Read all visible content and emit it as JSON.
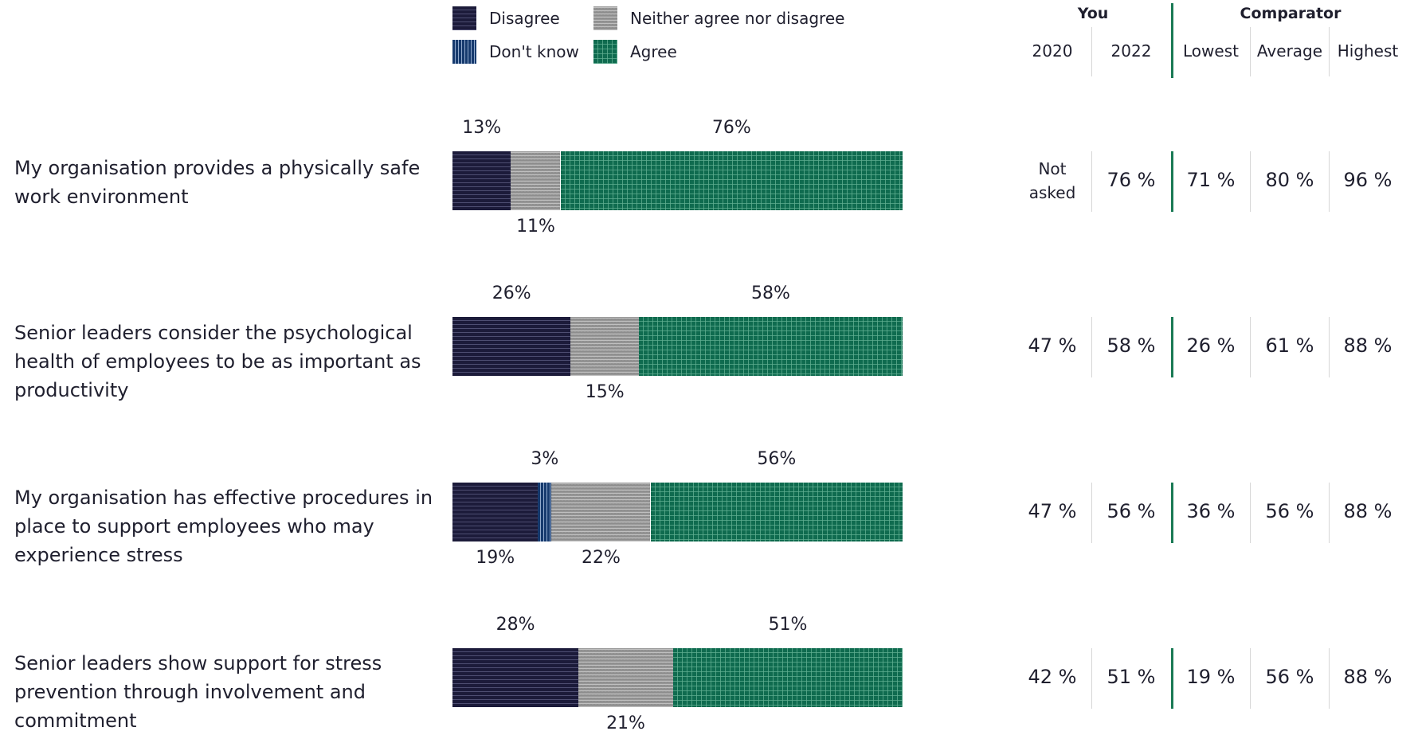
{
  "colors": {
    "disagree": "#1c1b3a",
    "dont_know": "#163a6e",
    "neither": "#8d8d8d",
    "agree": "#0f6b4f",
    "divider_accent": "#1a7a55"
  },
  "legend": [
    {
      "key": "disagree",
      "label": "Disagree"
    },
    {
      "key": "neither",
      "label": "Neither agree nor disagree"
    },
    {
      "key": "dont_know",
      "label": "Don't know"
    },
    {
      "key": "agree",
      "label": "Agree"
    }
  ],
  "table": {
    "group_you": "You",
    "group_comparator": "Comparator",
    "columns": [
      "2020",
      "2022",
      "Lowest",
      "Average",
      "Highest"
    ]
  },
  "chart_data": {
    "type": "bar",
    "orientation": "horizontal",
    "stacked": true,
    "categories": [
      "My organisation provides a physically safe work environment",
      "Senior leaders consider the psychological health of employees to be as important as productivity",
      "My organisation has effective procedures in place to support employees who may experience stress",
      "Senior leaders show support for stress prevention through involvement and commitment"
    ],
    "series": [
      {
        "name": "Disagree",
        "key": "disagree",
        "values": [
          13,
          26,
          19,
          28
        ]
      },
      {
        "name": "Don't know",
        "key": "dont_know",
        "values": [
          0,
          0,
          3,
          0
        ]
      },
      {
        "name": "Neither agree nor disagree",
        "key": "neither",
        "values": [
          11,
          15,
          22,
          21
        ]
      },
      {
        "name": "Agree",
        "key": "agree",
        "values": [
          76,
          58,
          56,
          51
        ]
      }
    ],
    "xlim": [
      0,
      100
    ],
    "legend_position": "top",
    "rows": [
      {
        "y2020": "Not asked",
        "y2022": "76 %",
        "lowest": "71 %",
        "average": "80 %",
        "highest": "96 %"
      },
      {
        "y2020": "47 %",
        "y2022": "58 %",
        "lowest": "26 %",
        "average": "61 %",
        "highest": "88 %"
      },
      {
        "y2020": "47 %",
        "y2022": "56 %",
        "lowest": "36 %",
        "average": "56 %",
        "highest": "88 %"
      },
      {
        "y2020": "42 %",
        "y2022": "51 %",
        "lowest": "19 %",
        "average": "56 %",
        "highest": "88 %"
      }
    ]
  }
}
